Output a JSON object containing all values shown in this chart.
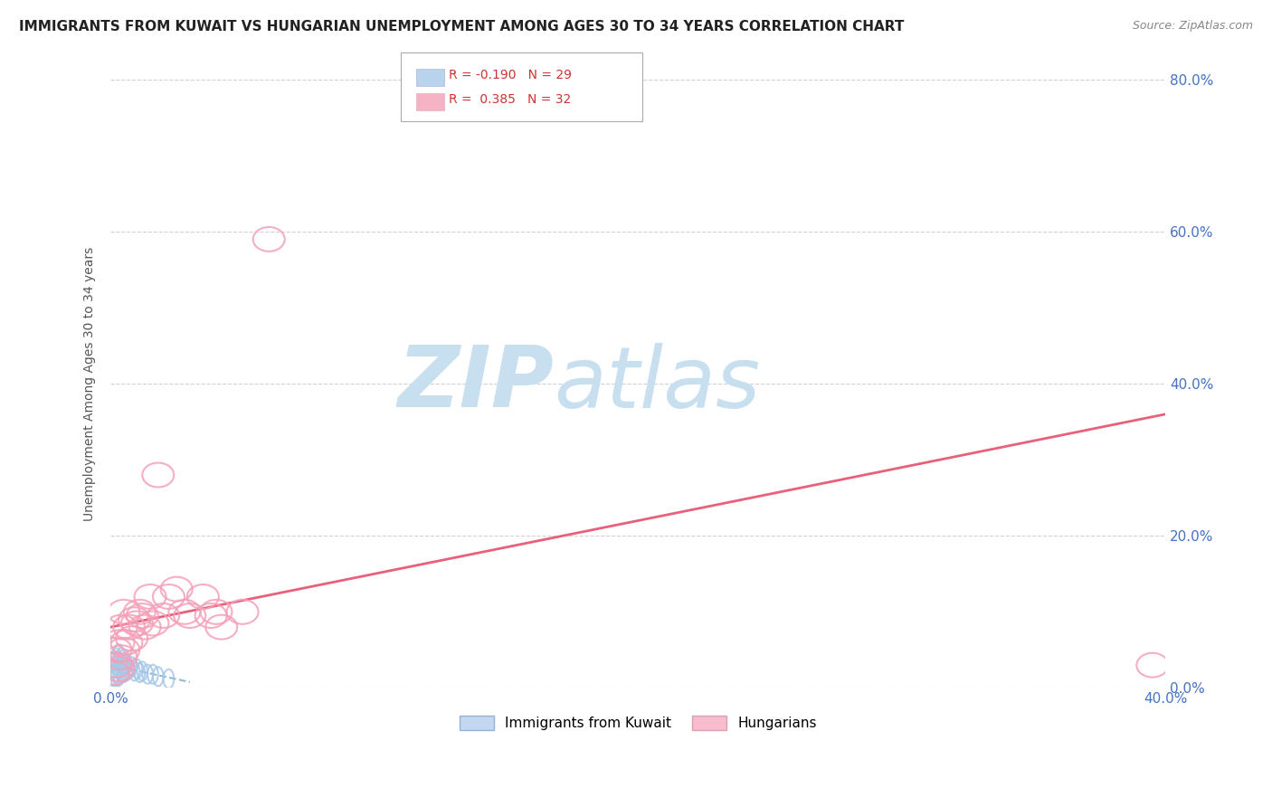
{
  "title": "IMMIGRANTS FROM KUWAIT VS HUNGARIAN UNEMPLOYMENT AMONG AGES 30 TO 34 YEARS CORRELATION CHART",
  "source": "Source: ZipAtlas.com",
  "ylabel": "Unemployment Among Ages 30 to 34 years",
  "xlim": [
    0.0,
    0.4
  ],
  "ylim": [
    0.0,
    0.8
  ],
  "yticks": [
    0.0,
    0.2,
    0.4,
    0.6,
    0.8
  ],
  "yticklabels": [
    "0.0%",
    "20.0%",
    "40.0%",
    "60.0%",
    "80.0%"
  ],
  "legend_R_blue": "-0.190",
  "legend_N_blue": "29",
  "legend_R_pink": "0.385",
  "legend_N_pink": "32",
  "blue_color": "#a8c8e8",
  "pink_color": "#f4a0b8",
  "blue_line_color": "#90b8d8",
  "pink_line_color": "#e8607a",
  "watermark_zip": "ZIP",
  "watermark_atlas": "atlas",
  "watermark_color_zip": "#c8dff0",
  "watermark_color_atlas": "#c8dff0",
  "background_color": "#ffffff",
  "grid_color": "#d0d0d0",
  "title_fontsize": 11,
  "axis_label_fontsize": 10,
  "tick_fontsize": 11,
  "tick_color": "#4472c4",
  "blue_x": [
    0.001,
    0.001,
    0.001,
    0.002,
    0.002,
    0.002,
    0.002,
    0.003,
    0.003,
    0.003,
    0.003,
    0.004,
    0.004,
    0.004,
    0.005,
    0.005,
    0.005,
    0.006,
    0.006,
    0.007,
    0.008,
    0.009,
    0.01,
    0.011,
    0.012,
    0.014,
    0.016,
    0.018,
    0.022
  ],
  "blue_y": [
    0.015,
    0.025,
    0.035,
    0.015,
    0.02,
    0.03,
    0.04,
    0.015,
    0.025,
    0.035,
    0.045,
    0.02,
    0.03,
    0.04,
    0.02,
    0.028,
    0.038,
    0.022,
    0.032,
    0.025,
    0.028,
    0.022,
    0.025,
    0.02,
    0.022,
    0.018,
    0.018,
    0.015,
    0.012
  ],
  "pink_x": [
    0.001,
    0.002,
    0.002,
    0.003,
    0.003,
    0.004,
    0.004,
    0.005,
    0.005,
    0.006,
    0.007,
    0.008,
    0.009,
    0.01,
    0.011,
    0.012,
    0.013,
    0.015,
    0.016,
    0.018,
    0.02,
    0.022,
    0.025,
    0.028,
    0.03,
    0.035,
    0.038,
    0.04,
    0.042,
    0.05,
    0.06,
    0.395
  ],
  "pink_y": [
    0.02,
    0.03,
    0.05,
    0.025,
    0.06,
    0.04,
    0.08,
    0.05,
    0.1,
    0.06,
    0.08,
    0.065,
    0.09,
    0.085,
    0.1,
    0.095,
    0.08,
    0.12,
    0.085,
    0.28,
    0.095,
    0.12,
    0.13,
    0.1,
    0.095,
    0.12,
    0.095,
    0.1,
    0.08,
    0.1,
    0.59,
    0.03
  ]
}
